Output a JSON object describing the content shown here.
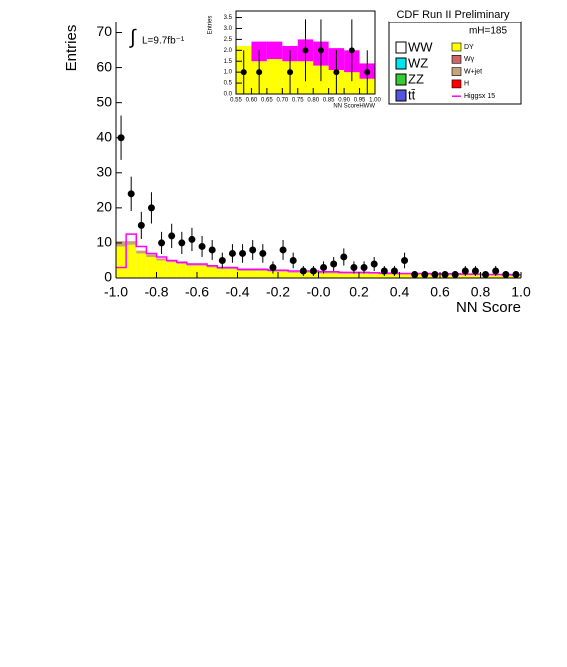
{
  "chart_data": [
    {
      "type": "stacked-histogram",
      "title": "CDF Run II Preliminary",
      "annotation": "L=9.7fb⁻¹",
      "integral_sign": "∫",
      "mass_label": "mH=185",
      "xlabel": "NN Score",
      "ylabel": "Entries",
      "xlim": [
        -1,
        1
      ],
      "ylim": [
        0,
        73
      ],
      "xticks": [
        {
          "value": -1,
          "label": "-1.0"
        },
        {
          "value": -0.8,
          "label": "-0.8"
        },
        {
          "value": -0.6,
          "label": "-0.6"
        },
        {
          "value": -0.4,
          "label": "-0.4"
        },
        {
          "value": -0.2,
          "label": "-0.2"
        },
        {
          "value": 0,
          "label": "-0.0"
        },
        {
          "value": 0.2,
          "label": "0.2"
        },
        {
          "value": 0.4,
          "label": "0.4"
        },
        {
          "value": 0.6,
          "label": "0.6"
        },
        {
          "value": 0.8,
          "label": "0.8"
        },
        {
          "value": 1,
          "label": "1.0"
        }
      ],
      "yticks": [
        0,
        10,
        20,
        30,
        40,
        50,
        60,
        70
      ],
      "bins": [
        -1,
        -0.95,
        -0.9,
        -0.85,
        -0.8,
        -0.75,
        -0.7,
        -0.65,
        -0.6,
        -0.55,
        -0.5,
        -0.45,
        -0.4,
        -0.35,
        -0.3,
        -0.25,
        -0.2,
        -0.15,
        -0.1,
        -0.05,
        0,
        0.05,
        0.1,
        0.15,
        0.2,
        0.25,
        0.3,
        0.35,
        0.4,
        0.45,
        0.5,
        0.55,
        0.6,
        0.65,
        0.7,
        0.75,
        0.8,
        0.85,
        0.9,
        0.95,
        1
      ],
      "series": [
        {
          "name": "DY",
          "color": "#ffff00",
          "values": [
            9,
            9.5,
            7,
            6,
            5,
            4.5,
            4,
            3.5,
            3.5,
            3,
            2.5,
            2.5,
            2,
            2,
            2,
            1.8,
            1.8,
            1.5,
            1.5,
            1.5,
            1.3,
            1.3,
            1.2,
            1.2,
            1.2,
            1.2,
            1,
            1,
            1,
            1,
            1,
            0.8,
            0.8,
            0.8,
            0.8,
            0.8,
            0.7,
            0.7,
            0.7,
            0.6
          ]
        },
        {
          "name": "W+jet",
          "color": "#c8a27a",
          "values": [
            1.5,
            1,
            0.8,
            0.7,
            0.6,
            0.5,
            0.5,
            0.5,
            0.5,
            0.4,
            0.4,
            0.4,
            0.3,
            0.3,
            0.3,
            0.3,
            0.3,
            0.3,
            0.3,
            0.3,
            0.3,
            0.3,
            0.3,
            0.3,
            0.3,
            0.3,
            0.3,
            0.3,
            0.3,
            0.3,
            0.3,
            0.3,
            0.3,
            0.3,
            0.3,
            0.3,
            0.3,
            0.3,
            0.3,
            0.3
          ]
        }
      ],
      "signal": {
        "name": "Higgsx 15",
        "color": "#ff00ff",
        "values": [
          3,
          12.5,
          9,
          7,
          6,
          5,
          4.5,
          4,
          4,
          3.5,
          3,
          3,
          2.5,
          2.5,
          2.5,
          2.2,
          2.2,
          2,
          2,
          2,
          1.8,
          1.8,
          1.6,
          1.6,
          1.6,
          1.5,
          1.4,
          1.4,
          1.3,
          1.3,
          1.3,
          1.2,
          1.2,
          1.2,
          1.1,
          1.1,
          1,
          1,
          1,
          0.9
        ]
      },
      "data": {
        "x": [
          -0.975,
          -0.925,
          -0.875,
          -0.825,
          -0.775,
          -0.725,
          -0.675,
          -0.625,
          -0.575,
          -0.525,
          -0.475,
          -0.425,
          -0.375,
          -0.325,
          -0.275,
          -0.225,
          -0.175,
          -0.125,
          -0.075,
          -0.025,
          0.025,
          0.075,
          0.125,
          0.175,
          0.225,
          0.275,
          0.325,
          0.375,
          0.425,
          0.475,
          0.525,
          0.575,
          0.625,
          0.675,
          0.725,
          0.775,
          0.825,
          0.875,
          0.925,
          0.975
        ],
        "values": [
          40,
          24,
          15,
          20,
          10,
          12,
          10,
          11,
          9,
          8,
          5,
          7,
          7,
          8,
          7,
          3,
          8,
          5,
          2,
          2,
          3,
          4,
          6,
          3,
          3,
          4,
          2,
          2,
          5,
          1,
          1,
          1,
          1,
          1,
          2,
          2,
          1,
          2,
          1,
          1
        ],
        "color": "#000000"
      },
      "legend": [
        {
          "name": "WW",
          "color": "#ffffff",
          "size": "large"
        },
        {
          "name": "WZ",
          "color": "#00e5ee",
          "size": "large"
        },
        {
          "name": "ZZ",
          "color": "#33cc33",
          "size": "large"
        },
        {
          "name": "tt̄",
          "color": "#5555dd",
          "size": "large"
        },
        {
          "name": "DY",
          "color": "#ffff00",
          "size": "small"
        },
        {
          "name": "Wγ",
          "color": "#cc6666",
          "size": "small"
        },
        {
          "name": "W+jet",
          "color": "#c8a27a",
          "size": "small"
        },
        {
          "name": "H",
          "color": "#ff0000",
          "size": "small"
        },
        {
          "name": "Higgsx 15",
          "color": "#ff00ff",
          "size": "line"
        }
      ]
    },
    {
      "type": "inset-histogram",
      "xlabel": "NN ScoreHWW",
      "ylabel": "Entries",
      "xlim": [
        0.55,
        1
      ],
      "ylim": [
        0,
        3.8
      ],
      "xticks": [
        {
          "value": 0.55,
          "label": "0.55"
        },
        {
          "value": 0.6,
          "label": "0.60"
        },
        {
          "value": 0.65,
          "label": "0.65"
        },
        {
          "value": 0.7,
          "label": "0.70"
        },
        {
          "value": 0.75,
          "label": "0.75"
        },
        {
          "value": 0.8,
          "label": "0.80"
        },
        {
          "value": 0.85,
          "label": "0.85"
        },
        {
          "value": 0.9,
          "label": "0.90"
        },
        {
          "value": 0.95,
          "label": "0.95"
        },
        {
          "value": 1,
          "label": "1.00"
        }
      ],
      "yticks": [
        {
          "value": 0,
          "label": "0.0"
        },
        {
          "value": 0.5,
          "label": "0.5"
        },
        {
          "value": 1,
          "label": "1.0"
        },
        {
          "value": 1.5,
          "label": "1.5"
        },
        {
          "value": 2,
          "label": "2.0"
        },
        {
          "value": 2.5,
          "label": "2.5"
        },
        {
          "value": 3,
          "label": "3.0"
        },
        {
          "value": 3.5,
          "label": "3.5"
        }
      ],
      "bins": [
        0.55,
        0.6,
        0.65,
        0.7,
        0.75,
        0.8,
        0.85,
        0.9,
        0.95,
        1
      ],
      "series": [
        {
          "name": "DY",
          "color": "#ffff00",
          "values": [
            2.2,
            1.5,
            1.6,
            1.5,
            1.5,
            1.3,
            1.1,
            1.0,
            0.7
          ]
        },
        {
          "name": "Higgsx 15",
          "color": "#ff00ff",
          "values": [
            0,
            0.9,
            0.8,
            0.7,
            1.0,
            1.1,
            1.0,
            1.0,
            0.7
          ]
        }
      ],
      "data": {
        "x": [
          0.575,
          0.625,
          0.725,
          0.775,
          0.825,
          0.875,
          0.925,
          0.975
        ],
        "values": [
          1,
          1,
          1,
          2,
          2,
          1,
          2,
          1
        ],
        "color": "#000000"
      }
    }
  ]
}
